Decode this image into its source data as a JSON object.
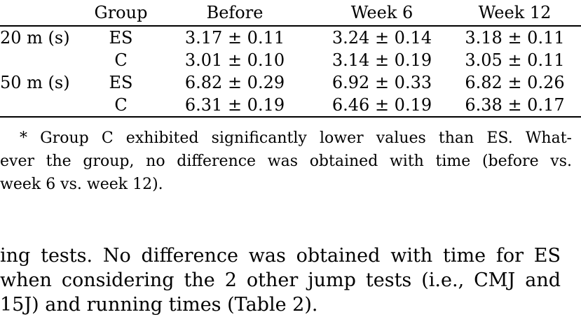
{
  "table": {
    "headers": [
      "",
      "Group",
      "Before",
      "Week 6",
      "Week 12"
    ],
    "rows": [
      [
        "20 m (s)",
        "ES",
        "3.17 ± 0.11",
        "3.24 ± 0.14",
        "3.18 ± 0.11"
      ],
      [
        "",
        "C",
        "3.01 ± 0.10",
        "3.14 ± 0.19",
        "3.05 ± 0.11"
      ],
      [
        "50 m (s)",
        "ES",
        "6.82 ± 0.29",
        "6.92 ± 0.33",
        "6.82 ± 0.26"
      ],
      [
        "",
        "C",
        "6.31 ± 0.19",
        "6.46 ± 0.19",
        "6.38 ± 0.17"
      ]
    ]
  },
  "footnote": {
    "lines": [
      "* Group C exhibited significantly lower values than ES. What-",
      "ever the group, no difference was obtained with time (before vs.",
      "week 6 vs. week 12)."
    ]
  },
  "body": {
    "lines": [
      "ing tests. No difference was obtained with time for ES",
      "when considering the 2 other jump tests (i.e., CMJ and",
      "15J) and running times (Table 2)."
    ]
  }
}
